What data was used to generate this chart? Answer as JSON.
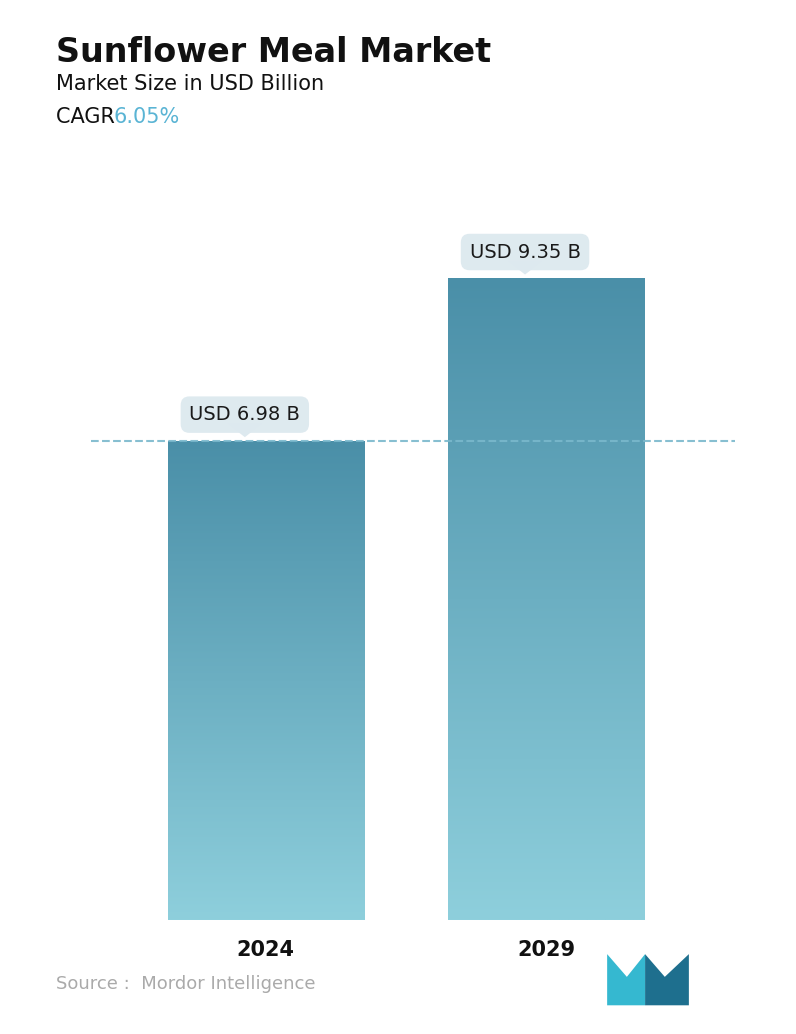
{
  "title": "Sunflower Meal Market",
  "subtitle": "Market Size in USD Billion",
  "cagr_label": "CAGR  ",
  "cagr_value": "6.05%",
  "cagr_color": "#5ab4d4",
  "categories": [
    "2024",
    "2029"
  ],
  "values": [
    6.98,
    9.35
  ],
  "labels": [
    "USD 6.98 B",
    "USD 9.35 B"
  ],
  "bar_top_color": "#4a8fa8",
  "bar_bottom_color": "#8ecfdc",
  "bar_width": 0.28,
  "dashed_line_color": "#7ab8cc",
  "dashed_line_y": 6.98,
  "source_text": "Source :  Mordor Intelligence",
  "source_color": "#aaaaaa",
  "background_color": "#ffffff",
  "title_fontsize": 24,
  "subtitle_fontsize": 15,
  "cagr_fontsize": 15,
  "label_fontsize": 14,
  "tick_fontsize": 15,
  "source_fontsize": 13,
  "ylim": [
    0,
    11.0
  ],
  "label_box_color": "#dde9ef",
  "label_text_color": "#1a1a1a",
  "x_positions": [
    0.3,
    0.7
  ]
}
